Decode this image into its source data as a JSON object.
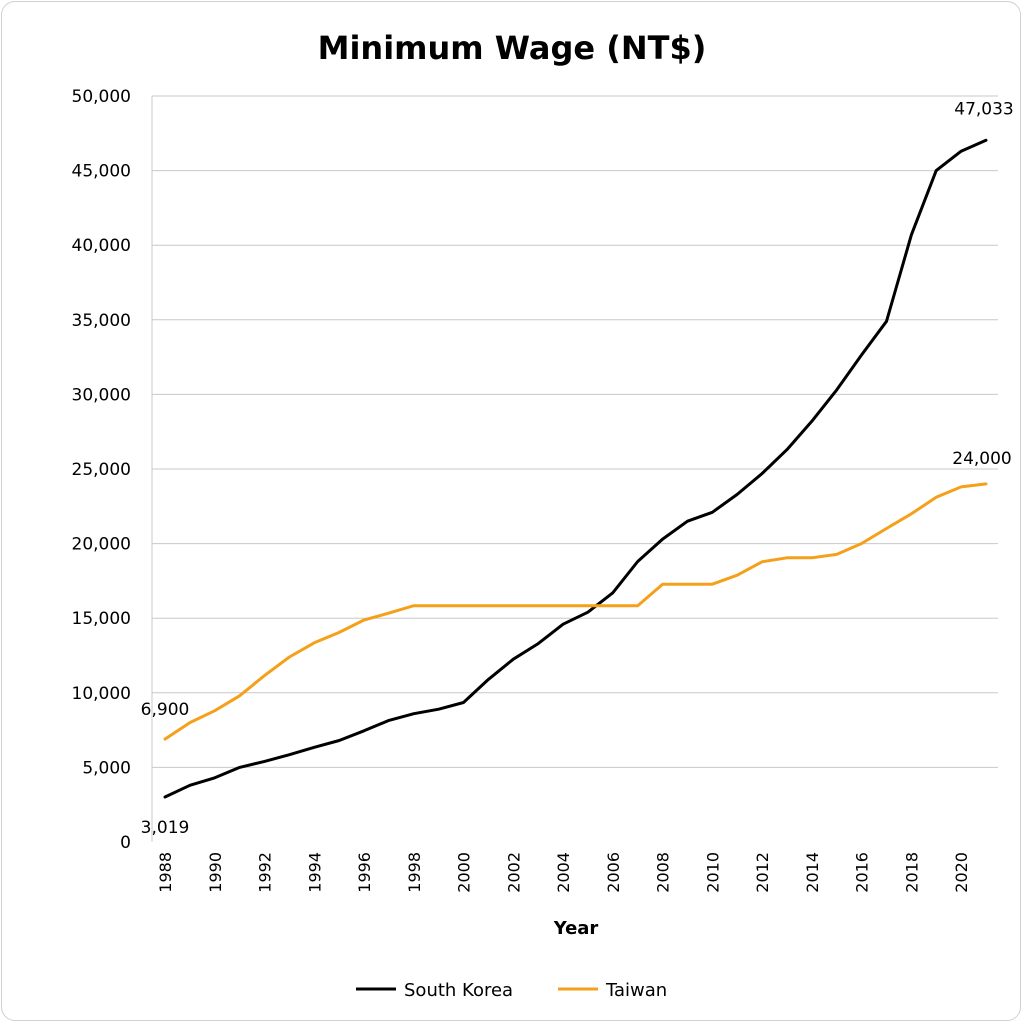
{
  "chart_data": {
    "type": "line",
    "title": "Minimum Wage (NT$)",
    "xlabel": "Year",
    "ylabel": "",
    "ylim": [
      0,
      50000
    ],
    "y_ticks": [
      0,
      5000,
      10000,
      15000,
      20000,
      25000,
      30000,
      35000,
      40000,
      45000,
      50000
    ],
    "y_tick_labels": [
      "0",
      "5,000",
      "10,000",
      "15,000",
      "20,000",
      "25,000",
      "30,000",
      "35,000",
      "40,000",
      "45,000",
      "50,000"
    ],
    "x_tick_labels": [
      "1988",
      "1990",
      "1992",
      "1994",
      "1996",
      "1998",
      "2000",
      "2002",
      "2004",
      "2006",
      "2008",
      "2010",
      "2012",
      "2014",
      "2016",
      "2018",
      "2020"
    ],
    "grid": "horizontal",
    "legend_position": "bottom",
    "x": [
      1988,
      1989,
      1990,
      1991,
      1992,
      1993,
      1994,
      1995,
      1996,
      1997,
      1998,
      1999,
      2000,
      2001,
      2002,
      2003,
      2004,
      2005,
      2006,
      2007,
      2008,
      2009,
      2010,
      2011,
      2012,
      2013,
      2014,
      2015,
      2016,
      2017,
      2018,
      2019,
      2020,
      2021
    ],
    "series": [
      {
        "name": "South Korea",
        "color": "#000000",
        "values": [
          3019,
          3800,
          4300,
          5000,
          5400,
          5850,
          6350,
          6800,
          7450,
          8150,
          8600,
          8900,
          9350,
          10900,
          12250,
          13300,
          14600,
          15400,
          16700,
          18800,
          20300,
          21500,
          22100,
          23300,
          24700,
          26300,
          28200,
          30300,
          32650,
          34900,
          40700,
          45000,
          46300,
          47033
        ],
        "labels": [
          {
            "index": 0,
            "text": "3,019"
          },
          {
            "index": 33,
            "text": "47,033"
          }
        ]
      },
      {
        "name": "Taiwan",
        "color": "#F5A01A",
        "values": [
          6900,
          8000,
          8800,
          9800,
          11150,
          12400,
          13350,
          14050,
          14880,
          15340,
          15840,
          15840,
          15840,
          15840,
          15840,
          15840,
          15840,
          15840,
          15840,
          15840,
          17280,
          17280,
          17280,
          17880,
          18780,
          19047,
          19047,
          19273,
          20008,
          21009,
          22000,
          23100,
          23800,
          24000
        ],
        "labels": [
          {
            "index": 0,
            "text": "6,900"
          },
          {
            "index": 33,
            "text": "24,000"
          }
        ]
      }
    ]
  }
}
